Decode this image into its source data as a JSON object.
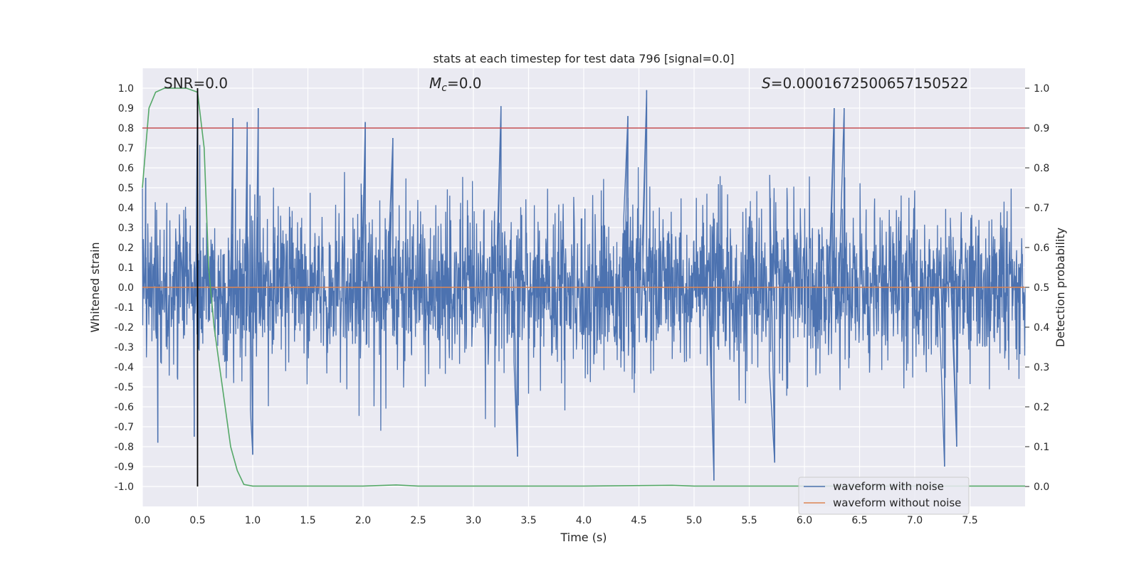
{
  "chart_data": {
    "type": "line",
    "title": "stats at each timestep for test data 796 [signal=0.0]",
    "xlabel": "Time (s)",
    "ylabel": "Whitened strain",
    "y2label": "Detection probability",
    "xlim": [
      0,
      8
    ],
    "ylim": [
      -1.1,
      1.1
    ],
    "y2lim": [
      -0.05,
      1.05
    ],
    "xticks": [
      "0.0",
      "0.5",
      "1.0",
      "1.5",
      "2.0",
      "2.5",
      "3.0",
      "3.5",
      "4.0",
      "4.5",
      "5.0",
      "5.5",
      "6.0",
      "6.5",
      "7.0",
      "7.5"
    ],
    "yticks": [
      "1.0",
      "0.9",
      "0.8",
      "0.7",
      "0.6",
      "0.5",
      "0.4",
      "0.3",
      "0.2",
      "0.1",
      "0.0",
      "-0.1",
      "-0.2",
      "-0.3",
      "-0.4",
      "-0.5",
      "-0.6",
      "-0.7",
      "-0.8",
      "-0.9",
      "-1.0"
    ],
    "y2ticks": [
      "0.0",
      "0.1",
      "0.2",
      "0.3",
      "0.4",
      "0.5",
      "0.6",
      "0.7",
      "0.8",
      "0.9",
      "1.0"
    ],
    "grid": true,
    "legend_position": "lower right",
    "annotations": {
      "snr": "SNR=0.0",
      "mc_symbol": "M",
      "mc_sub": "c",
      "mc_value": "=0.0",
      "s_symbol": "S",
      "s_value": "=0.0001672500657150522"
    },
    "series": [
      {
        "name": "waveform with noise",
        "color": "#4c72b0",
        "axis": "left",
        "kind": "noise",
        "x_range": [
          0,
          8
        ],
        "envelope_typical": [
          -0.6,
          0.6
        ],
        "peaks": [
          {
            "x": 0.03,
            "y": 0.55
          },
          {
            "x": 0.14,
            "y": -0.78
          },
          {
            "x": 0.47,
            "y": -0.75
          },
          {
            "x": 0.5,
            "y": 0.98
          },
          {
            "x": 0.82,
            "y": 0.85
          },
          {
            "x": 0.95,
            "y": 0.83
          },
          {
            "x": 1.0,
            "y": -0.84
          },
          {
            "x": 1.05,
            "y": 0.9
          },
          {
            "x": 2.02,
            "y": 0.83
          },
          {
            "x": 2.27,
            "y": 0.75
          },
          {
            "x": 3.4,
            "y": -0.85
          },
          {
            "x": 3.25,
            "y": 0.91
          },
          {
            "x": 4.4,
            "y": 0.86
          },
          {
            "x": 4.57,
            "y": 0.99
          },
          {
            "x": 5.18,
            "y": -0.97
          },
          {
            "x": 5.73,
            "y": -0.88
          },
          {
            "x": 6.27,
            "y": 0.9
          },
          {
            "x": 6.36,
            "y": 0.9
          },
          {
            "x": 7.27,
            "y": -0.9
          },
          {
            "x": 7.38,
            "y": -0.8
          }
        ]
      },
      {
        "name": "waveform without noise",
        "color": "#dd8452",
        "axis": "left",
        "x": [
          0,
          8
        ],
        "y": [
          0,
          0
        ]
      },
      {
        "name": "",
        "color": "#55a868",
        "axis": "right",
        "x": [
          0,
          0.06,
          0.12,
          0.2,
          0.3,
          0.4,
          0.5,
          0.56,
          0.6,
          0.65,
          0.7,
          0.75,
          0.8,
          0.86,
          0.92,
          1.0,
          2.0,
          2.3,
          2.5,
          4.0,
          4.8,
          5.0,
          6.0,
          8.0
        ],
        "y": [
          0.75,
          0.95,
          0.99,
          1.0,
          1.0,
          1.0,
          0.99,
          0.85,
          0.55,
          0.4,
          0.3,
          0.2,
          0.1,
          0.04,
          0.005,
          0.001,
          0.001,
          0.004,
          0.001,
          0.001,
          0.003,
          0.001,
          0.001,
          0.001
        ]
      },
      {
        "name": "",
        "color": "#c44e52",
        "axis": "left",
        "x": [
          0,
          8
        ],
        "y": [
          0.8,
          0.8
        ]
      },
      {
        "name": "",
        "color": "#000000",
        "axis": "right",
        "kind": "vertical",
        "x": [
          0.5,
          0.5
        ],
        "y": [
          0.0,
          1.0
        ]
      }
    ]
  }
}
